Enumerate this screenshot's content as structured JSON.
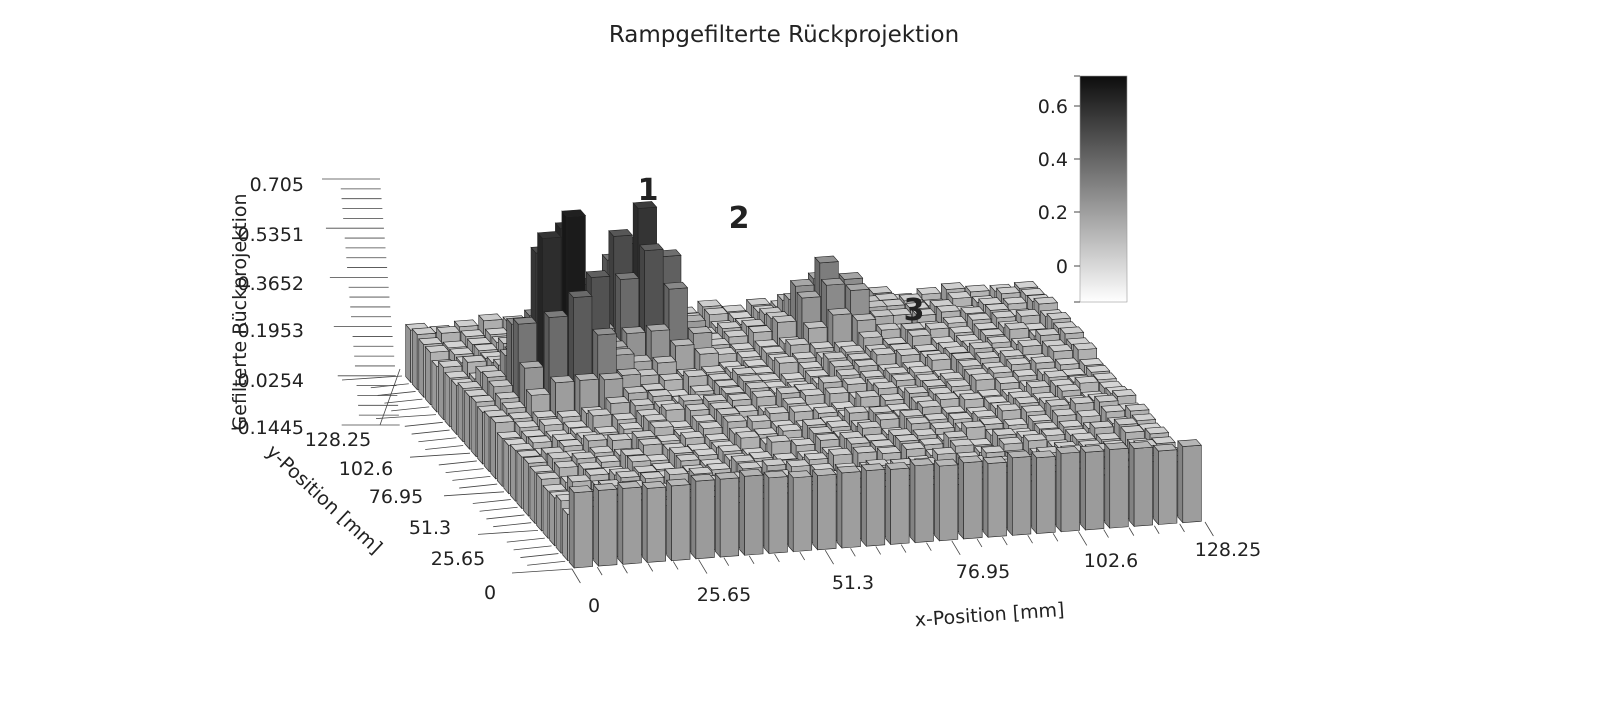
{
  "chart_data": {
    "type": "bar3d",
    "title": "Rampgefilterte Rückprojektion",
    "xlabel": "x-Position [mm]",
    "ylabel": "y-Position [mm]",
    "zlabel": "Gefilterte Rückprojektion",
    "x_ticks": [
      "0",
      "25.65",
      "51.3",
      "76.95",
      "102.6",
      "128.25"
    ],
    "y_ticks": [
      "0",
      "25.65",
      "51.3",
      "76.95",
      "102.6",
      "128.25"
    ],
    "z_ticks": [
      "-0.1445",
      "0.0254",
      "0.1953",
      "0.3652",
      "0.5351",
      "0.705"
    ],
    "x_range": [
      0,
      128.25
    ],
    "y_range": [
      0,
      128.25
    ],
    "z_range": [
      -0.1445,
      0.705
    ],
    "grid": 26,
    "colorbar": {
      "ticks": [
        "0",
        "0.2",
        "0.4",
        "0.6"
      ],
      "range": [
        -0.13,
        0.7
      ],
      "color_low": "#ffffff",
      "color_high": "#0d0d0d"
    },
    "peaks": [
      {
        "label": "1",
        "x": 21.0,
        "y": 83.0,
        "value": 0.69
      },
      {
        "label": "2",
        "x": 41.0,
        "y": 101.0,
        "value": 0.55
      },
      {
        "label": "3",
        "x": 82.0,
        "y": 110.0,
        "value": 0.23
      }
    ],
    "baseline_level": 0.03,
    "edge_level": 0.12
  }
}
